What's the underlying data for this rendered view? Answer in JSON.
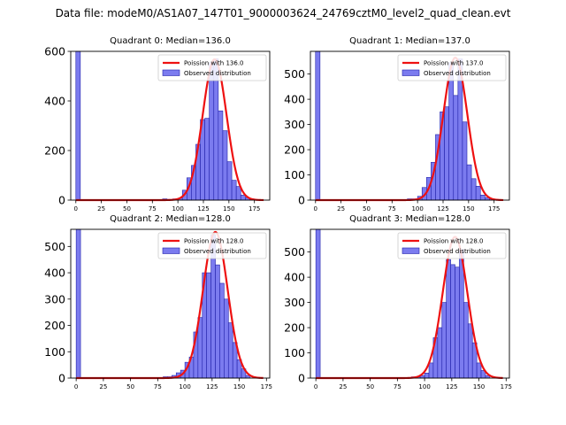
{
  "figure": {
    "title": "Data file: modeM0/AS1A07_147T01_9000003624_24769cztM0_level2_quad_clean.evt"
  },
  "chart_data": [
    {
      "type": "bar",
      "title": "Quadrant 0: Median=136.0",
      "xlim": [
        -5,
        190
      ],
      "ylim": [
        0,
        600
      ],
      "xticks": [
        0,
        25,
        50,
        75,
        100,
        125,
        150,
        175
      ],
      "yticks": [
        0,
        200,
        400,
        600
      ],
      "bin_width": 4.4,
      "series": [
        {
          "name": "Observed distribution",
          "x": [
            0,
            85,
            90,
            95,
            100,
            104.4,
            108.8,
            113.2,
            117.6,
            122,
            126.4,
            130.8,
            135.2,
            139.6,
            144,
            148.4,
            152.8,
            157.2,
            161.6,
            166,
            170.4
          ],
          "values": [
            600,
            5,
            3,
            5,
            8,
            40,
            90,
            140,
            225,
            325,
            330,
            555,
            570,
            360,
            280,
            155,
            80,
            55,
            20,
            10,
            5
          ]
        },
        {
          "name": "Poission with 136.0",
          "mean": 136.0,
          "peak": 568,
          "x_range": [
            0,
            184
          ]
        }
      ],
      "legend": {
        "placement": "top-right",
        "entries": [
          "Poission with 136.0",
          "Observed distribution"
        ]
      }
    },
    {
      "type": "bar",
      "title": "Quadrant 1: Median=137.0",
      "xlim": [
        -5,
        190
      ],
      "ylim": [
        0,
        590
      ],
      "xticks": [
        0,
        25,
        50,
        75,
        100,
        125,
        150,
        175
      ],
      "yticks": [
        0,
        100,
        200,
        300,
        400,
        500
      ],
      "bin_width": 4.4,
      "series": [
        {
          "name": "Observed distribution",
          "x": [
            0,
            90,
            95,
            100,
            104.4,
            108.8,
            113.2,
            117.6,
            122,
            126.4,
            130.8,
            135.2,
            139.6,
            144,
            148.4,
            152.8,
            157.2,
            161.6,
            166,
            170.4
          ],
          "values": [
            590,
            5,
            5,
            15,
            50,
            90,
            150,
            260,
            350,
            370,
            545,
            415,
            560,
            310,
            140,
            85,
            55,
            20,
            10,
            5
          ]
        },
        {
          "name": "Poission with 137.0",
          "mean": 137.0,
          "peak": 565,
          "x_range": [
            0,
            184
          ]
        }
      ],
      "legend": {
        "placement": "top-right",
        "entries": [
          "Poission with 137.0",
          "Observed distribution"
        ]
      }
    },
    {
      "type": "bar",
      "title": "Quadrant 2: Median=128.0",
      "xlim": [
        -5,
        178
      ],
      "ylim": [
        0,
        565
      ],
      "xticks": [
        0,
        25,
        50,
        75,
        100,
        125,
        150,
        175
      ],
      "yticks": [
        0,
        100,
        200,
        300,
        400,
        500
      ],
      "bin_width": 4.0,
      "series": [
        {
          "name": "Observed distribution",
          "x": [
            0,
            80,
            84,
            88,
            92,
            96,
            100,
            104,
            108,
            112,
            116,
            120,
            124,
            128,
            132,
            136,
            140,
            144,
            148,
            152,
            156
          ],
          "values": [
            565,
            5,
            5,
            10,
            20,
            30,
            60,
            80,
            175,
            230,
            400,
            400,
            545,
            430,
            360,
            300,
            210,
            135,
            70,
            35,
            10
          ]
        },
        {
          "name": "Poission with 128.0",
          "mean": 128.0,
          "peak": 555,
          "x_range": [
            0,
            172
          ]
        }
      ],
      "legend": {
        "placement": "top-right",
        "entries": [
          "Poission with 128.0",
          "Observed distribution"
        ]
      }
    },
    {
      "type": "bar",
      "title": "Quadrant 3: Median=128.0",
      "xlim": [
        -5,
        178
      ],
      "ylim": [
        0,
        590
      ],
      "xticks": [
        0,
        25,
        50,
        75,
        100,
        125,
        150,
        175
      ],
      "yticks": [
        0,
        100,
        200,
        300,
        400,
        500
      ],
      "bin_width": 4.0,
      "series": [
        {
          "name": "Observed distribution",
          "x": [
            0,
            88,
            92,
            96,
            100,
            104,
            108,
            112,
            116,
            120,
            124,
            128,
            132,
            136,
            140,
            144,
            148,
            152,
            156
          ],
          "values": [
            590,
            5,
            5,
            10,
            20,
            60,
            160,
            200,
            300,
            470,
            450,
            440,
            510,
            300,
            215,
            140,
            60,
            30,
            10
          ]
        },
        {
          "name": "Poission with 128.0",
          "mean": 128.0,
          "peak": 560,
          "x_range": [
            0,
            172
          ]
        }
      ],
      "legend": {
        "placement": "top-right",
        "entries": [
          "Poission with 128.0",
          "Observed distribution"
        ]
      }
    }
  ],
  "colors": {
    "bar_fill": "#7b7bef",
    "bar_edge": "#2222aa",
    "curve": "#ee1111",
    "axis": "#000000"
  }
}
